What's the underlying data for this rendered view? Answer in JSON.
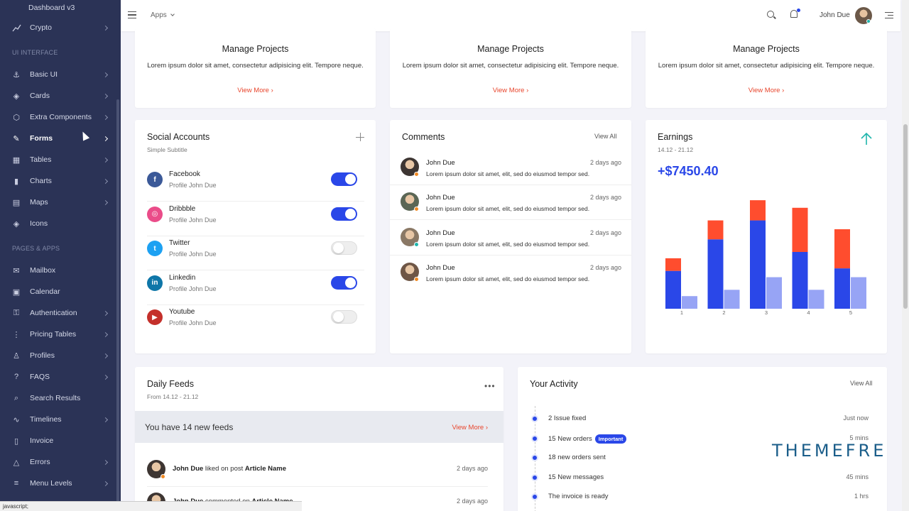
{
  "sidebar": {
    "top_item": "Dashboard v3",
    "crypto": "Crypto",
    "section_ui": "UI INTERFACE",
    "ui_items": [
      "Basic UI",
      "Cards",
      "Extra Components",
      "Forms",
      "Tables",
      "Charts",
      "Maps",
      "Icons"
    ],
    "section_pages": "PAGES & APPS",
    "page_items": [
      "Mailbox",
      "Calendar",
      "Authentication",
      "Pricing Tables",
      "Profiles",
      "FAQS",
      "Search Results",
      "Timelines",
      "Invoice",
      "Errors",
      "Menu Levels"
    ]
  },
  "topbar": {
    "apps": "Apps",
    "user": "John Due"
  },
  "manage_projects": {
    "title": "Manage Projects",
    "text": "Lorem ipsum dolor sit amet, consectetur adipisicing elit. Tempore neque.",
    "link": "View More"
  },
  "social": {
    "title": "Social Accounts",
    "subtitle": "Simple Subtitle",
    "items": [
      {
        "name": "Facebook",
        "sub": "Profile John Due",
        "glyph": "f",
        "color": "#3b5998",
        "on": true
      },
      {
        "name": "Dribbble",
        "sub": "Profile John Due",
        "glyph": "◎",
        "color": "#ea4c89",
        "on": true
      },
      {
        "name": "Twitter",
        "sub": "Profile John Due",
        "glyph": "t",
        "color": "#1da1f2",
        "on": false
      },
      {
        "name": "Linkedin",
        "sub": "Profile John Due",
        "glyph": "in",
        "color": "#0e76a8",
        "on": true
      },
      {
        "name": "Youtube",
        "sub": "Profile John Due",
        "glyph": "▶",
        "color": "#c4302b",
        "on": false
      }
    ]
  },
  "comments": {
    "title": "Comments",
    "view_all": "View All",
    "items": [
      {
        "name": "John Due",
        "time": "2 days ago",
        "text": "Lorem ipsum dolor sit amet, elit, sed do eiusmod tempor sed.",
        "status": "#f08a24"
      },
      {
        "name": "John Due",
        "time": "2 days ago",
        "text": "Lorem ipsum dolor sit amet, elit, sed do eiusmod tempor sed.",
        "status": "#f08a24"
      },
      {
        "name": "John Due",
        "time": "2 days ago",
        "text": "Lorem ipsum dolor sit amet, elit, sed do eiusmod tempor sed.",
        "status": "#1fb5ac"
      },
      {
        "name": "John Due",
        "time": "2 days ago",
        "text": "Lorem ipsum dolor sit amet, elit, sed do eiusmod tempor sed.",
        "status": "#f08a24"
      }
    ]
  },
  "earnings": {
    "title": "Earnings",
    "range": "14.12 - 21.12",
    "value": "+$7450.40"
  },
  "chart_data": {
    "type": "bar",
    "categories": [
      "1",
      "2",
      "3",
      "4",
      "5"
    ],
    "series": [
      {
        "values": [
          30,
          55,
          70,
          45,
          32
        ],
        "color": "#2a47e8"
      },
      {
        "values": [
          10,
          15,
          16,
          35,
          31
        ],
        "color": "#ff4d2e"
      },
      {
        "values": [
          10,
          15,
          25,
          15,
          25
        ],
        "color": "#97a4f5"
      }
    ],
    "stacked_pairs": [
      [
        0,
        1
      ]
    ],
    "ylim": [
      0,
      90
    ]
  },
  "feeds": {
    "title": "Daily Feeds",
    "range": "From 14.12 - 21.12",
    "banner": "You have 14 new feeds",
    "banner_link": "View More",
    "items": [
      {
        "user": "John Due",
        "action": " liked on post ",
        "target": "Article Name",
        "time": "2 days ago"
      },
      {
        "user": "John Due",
        "action": " commented on ",
        "target": "Article Name",
        "time": "2 days ago"
      }
    ]
  },
  "activity": {
    "title": "Your Activity",
    "view_all": "View All",
    "items": [
      {
        "text": "2 Issue fixed",
        "time": "Just now"
      },
      {
        "text": "15 New orders",
        "badge": "Important",
        "time": "5 mins"
      },
      {
        "text": "18 new orders sent",
        "time": ""
      },
      {
        "text": "15 New messages",
        "time": "45 mins"
      },
      {
        "text": "The invoice is ready",
        "time": "1 hrs"
      }
    ]
  },
  "watermark": "THEMEFRE",
  "statusbar": "javascript;"
}
